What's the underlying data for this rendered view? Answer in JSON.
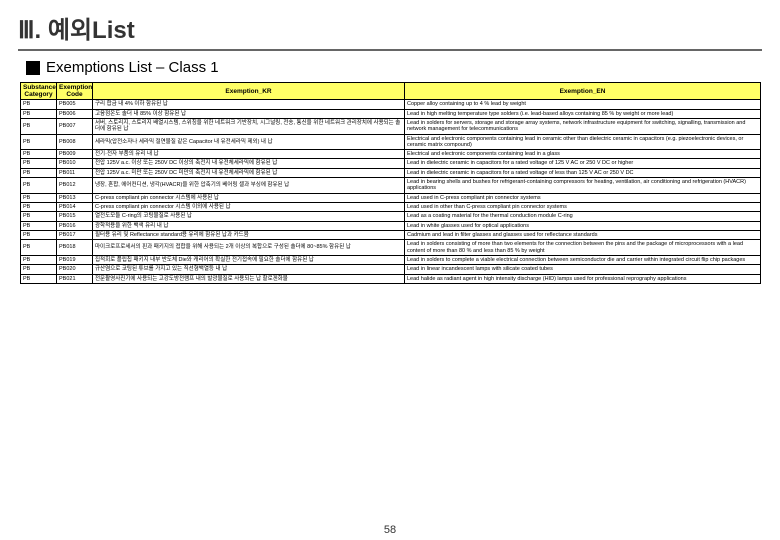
{
  "title": "Ⅲ. 예외List",
  "subtitle": "Exemptions List – Class 1",
  "headers": [
    "Substance Category",
    "Exemption Code",
    "Exemption_KR",
    "Exemption_EN"
  ],
  "rows": [
    {
      "cat": "PB",
      "code": "PB005",
      "kr": "구리 합금 내 4% 이하 함유된 납",
      "en": "Copper alloy containing up to 4 % lead by weight"
    },
    {
      "cat": "PB",
      "code": "PB006",
      "kr": "고융점온도 솔더 내 85% 이상 함유된 납",
      "en": "Lead in high melting temperature type solders (i.e. lead-based alloys containing 85 % by weight or more lead)"
    },
    {
      "cat": "PB",
      "code": "PB007",
      "kr": "서버, 스토리지, 스토리지 배열시스템, 스위칭을 위한 네트워크 기반장치, 시그널링, 전송, 통신을 위한 네트워크 관리장치에 사용되는 솔더에 함유된 납",
      "en": "Lead in solders for servers, storage and storage array systems, network infrastructure equipment for switching, signalling, transmission and network management for telecommunications"
    },
    {
      "cat": "PB",
      "code": "PB008",
      "kr": "세라믹(압전소자나 세라믹 절연물질 같은 Capacitor 내 유전세라믹 제외) 내 납",
      "en": "Electrical and electronic components containing lead in ceramic other than dielectric ceramic in capacitors (e.g. piezoelectronic devices, or ceramic matrix compound)"
    },
    {
      "cat": "PB",
      "code": "PB009",
      "kr": "전기·전자 부품의 유리 내 납",
      "en": "Electrical and electronic components containing lead in a glass"
    },
    {
      "cat": "PB",
      "code": "PB010",
      "kr": "전압 125V a.c. 이상 또는 250V DC 이상의 축전지 내 유전체세라믹에 함유된 납",
      "en": "Lead in dielectric ceramic in capacitors for a rated voltage of 125 V AC or 250 V DC or higher"
    },
    {
      "cat": "PB",
      "code": "PB011",
      "kr": "전압 125V a.c. 미만 또는 250V DC 미만의 축전지 내 유전체세라믹에 함유된 납",
      "en": "Lead in dielectric ceramic in capacitors for a rated voltage of less than 125 V AC or 250 V DC"
    },
    {
      "cat": "PB",
      "code": "PB012",
      "kr": "냉장, 혼합, 에어컨디션, 냉각(HVACR)을 위한 압축기의 베어링 셸과 부싱에 함유된 납",
      "en": "Lead in bearing shells and bushes for refrigerant-containing compressors for heating, ventilation, air conditioning and refrigeration (HVACR) applications"
    },
    {
      "cat": "PB",
      "code": "PB013",
      "kr": "C-press compliant pin connector 시스템에 사용된 납",
      "en": "Lead used in C-press compliant pin connector systems"
    },
    {
      "cat": "PB",
      "code": "PB014",
      "kr": "C-press compliant pin connector 시스템 이외에 사용된 납",
      "en": "Lead used in other than C-press compliant pin connector systems"
    },
    {
      "cat": "PB",
      "code": "PB015",
      "kr": "열전도모듈 C-ring의 코팅물질로 사용된 납",
      "en": "Lead as a coating material for the thermal conduction module C-ring"
    },
    {
      "cat": "PB",
      "code": "PB016",
      "kr": "광학적용을 위한 백색 유리 내 납",
      "en": "Lead in white glasses used for optical applications"
    },
    {
      "cat": "PB",
      "code": "PB017",
      "kr": "필터용 유리 및 Reflectance standard용 유리에 함유된 납과 카드뮴",
      "en": "Cadmium and lead in filter glasses and glasses used for reflectance standards"
    },
    {
      "cat": "PB",
      "code": "PB018",
      "kr": "마이크로프로세서의 핀과 패키지의 접합을 위해 사용되는 2개 이상의 복합으로 구성된 솔더에 80~85% 함유된 납",
      "en": "Lead in solders consisting of more than two elements for the connection between the pins and the package of microprocessors with a lead content of more than 80 % and less than 85 % by weight"
    },
    {
      "cat": "PB",
      "code": "PB019",
      "kr": "집적회로 플립칩 패키지 내부 반도체 Die와 캐리어의 확실한 전기접속에 필요한 솔더에 함유된 납",
      "en": "Lead in solders to complete a viable electrical connection between semiconductor die and carrier within integrated circuit flip chip packages"
    },
    {
      "cat": "PB",
      "code": "PB020",
      "kr": "규산염으로 코팅된 튜브를 가지고 있는 직선형백열등 내 납",
      "en": "Lead in linear incandescent lamps with silicate coated tubes"
    },
    {
      "cat": "PB",
      "code": "PB021",
      "kr": "전문촬영사진기에 사용되는 고강도방전램프 내의 발광물질로 사용되는 납 할로겐화물",
      "en": "Lead halide as radiant agent in high intensity discharge (HID) lamps used for professional reprography applications"
    }
  ],
  "pagenum": "58",
  "colors": {
    "header_bg": "#ffff66",
    "border": "#000000"
  }
}
